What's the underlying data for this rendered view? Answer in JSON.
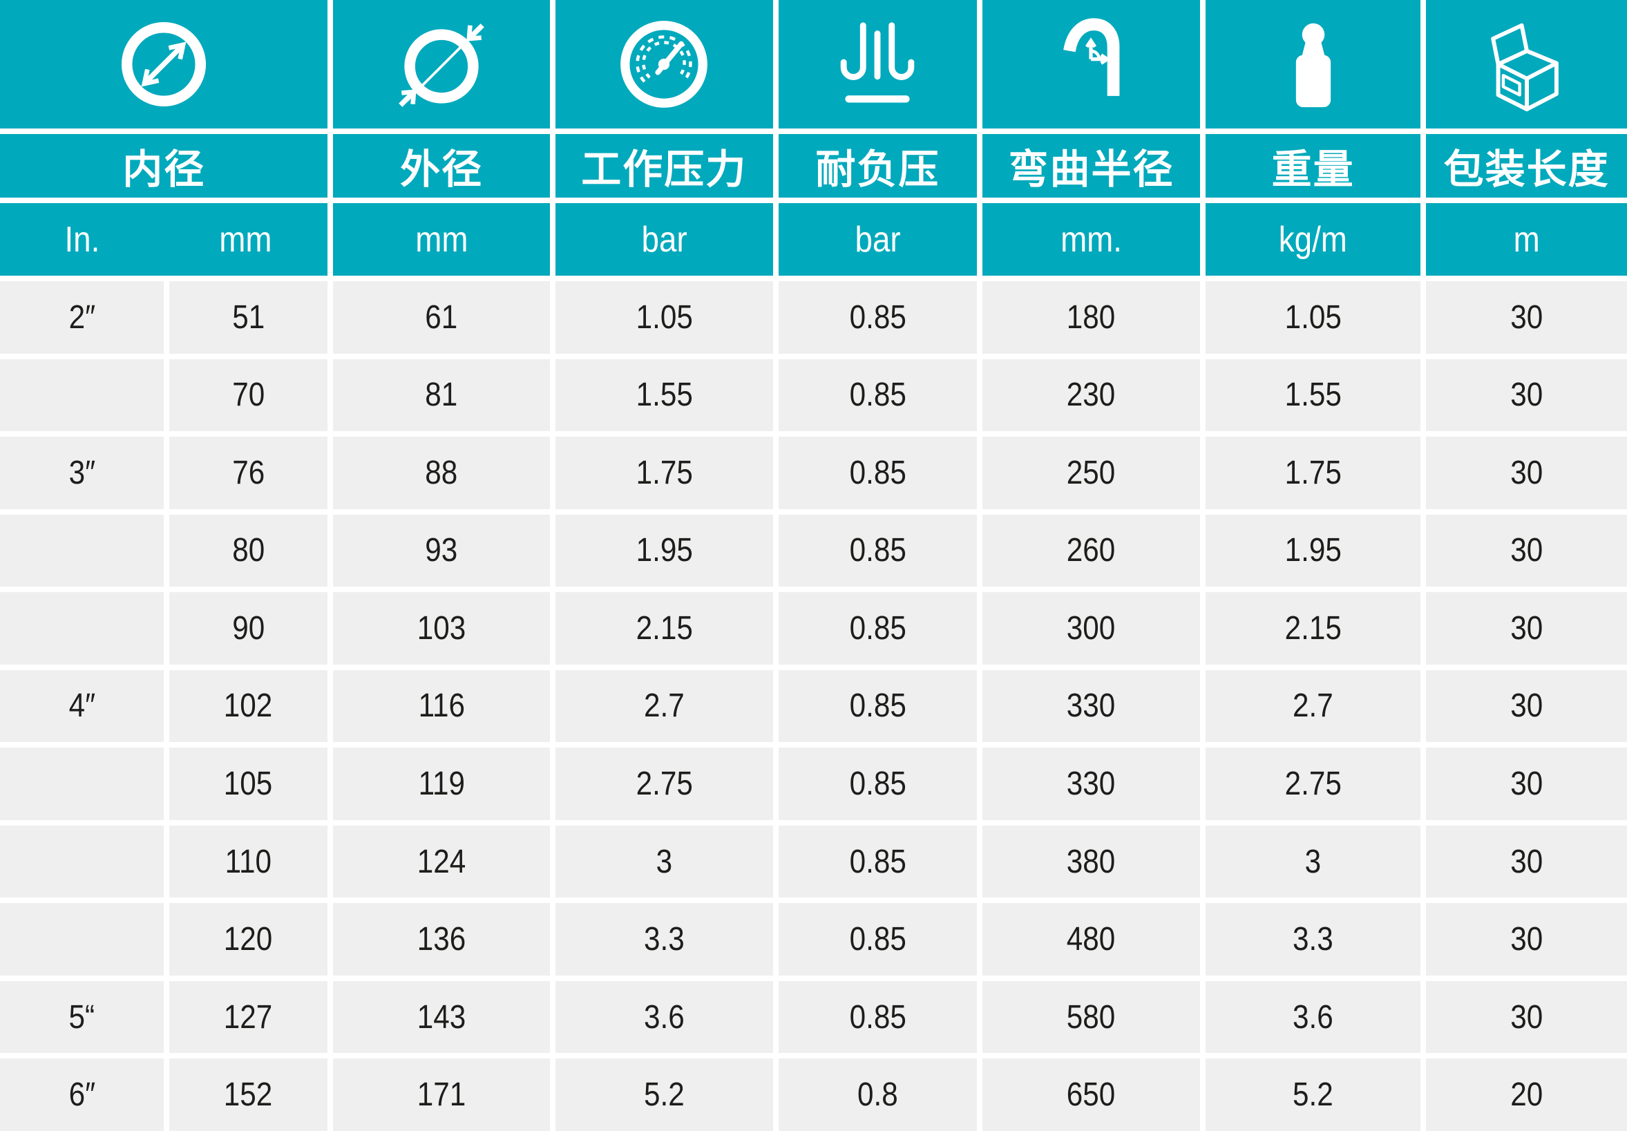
{
  "colors": {
    "teal": "#00a9bc",
    "cell_background": "#efefef",
    "divider": "#ffffff",
    "text_dark": "#1d1d1b",
    "text_light": "#ffffff"
  },
  "header": {
    "keys": [
      "inner-diameter",
      "outer-diameter",
      "working-pressure",
      "vacuum-resistance",
      "bend-radius",
      "weight",
      "packing-length"
    ],
    "icons": [
      "inner-diameter-icon",
      "outer-diameter-icon",
      "pressure-gauge-icon",
      "vacuum-icon",
      "bend-radius-icon",
      "weight-icon",
      "package-box-icon"
    ],
    "labels": [
      "内径",
      "外径",
      "工作压力",
      "耐负压",
      "弯曲半径",
      "重量",
      "包装长度"
    ],
    "units": [
      "In.",
      "mm",
      "mm",
      "bar",
      "bar",
      "mm.",
      "kg/m",
      "m"
    ]
  },
  "rows": [
    [
      "2″",
      "51",
      "61",
      "1.05",
      "0.85",
      "180",
      "1.05",
      "30"
    ],
    [
      "",
      "70",
      "81",
      "1.55",
      "0.85",
      "230",
      "1.55",
      "30"
    ],
    [
      "3″",
      "76",
      "88",
      "1.75",
      "0.85",
      "250",
      "1.75",
      "30"
    ],
    [
      "",
      "80",
      "93",
      "1.95",
      "0.85",
      "260",
      "1.95",
      "30"
    ],
    [
      "",
      "90",
      "103",
      "2.15",
      "0.85",
      "300",
      "2.15",
      "30"
    ],
    [
      "4″",
      "102",
      "116",
      "2.7",
      "0.85",
      "330",
      "2.7",
      "30"
    ],
    [
      "",
      "105",
      "119",
      "2.75",
      "0.85",
      "330",
      "2.75",
      "30"
    ],
    [
      "",
      "110",
      "124",
      "3",
      "0.85",
      "380",
      "3",
      "30"
    ],
    [
      "",
      "120",
      "136",
      "3.3",
      "0.85",
      "480",
      "3.3",
      "30"
    ],
    [
      "5“",
      "127",
      "143",
      "3.6",
      "0.85",
      "580",
      "3.6",
      "30"
    ],
    [
      "6″",
      "152",
      "171",
      "5.2",
      "0.8",
      "650",
      "5.2",
      "20"
    ]
  ]
}
